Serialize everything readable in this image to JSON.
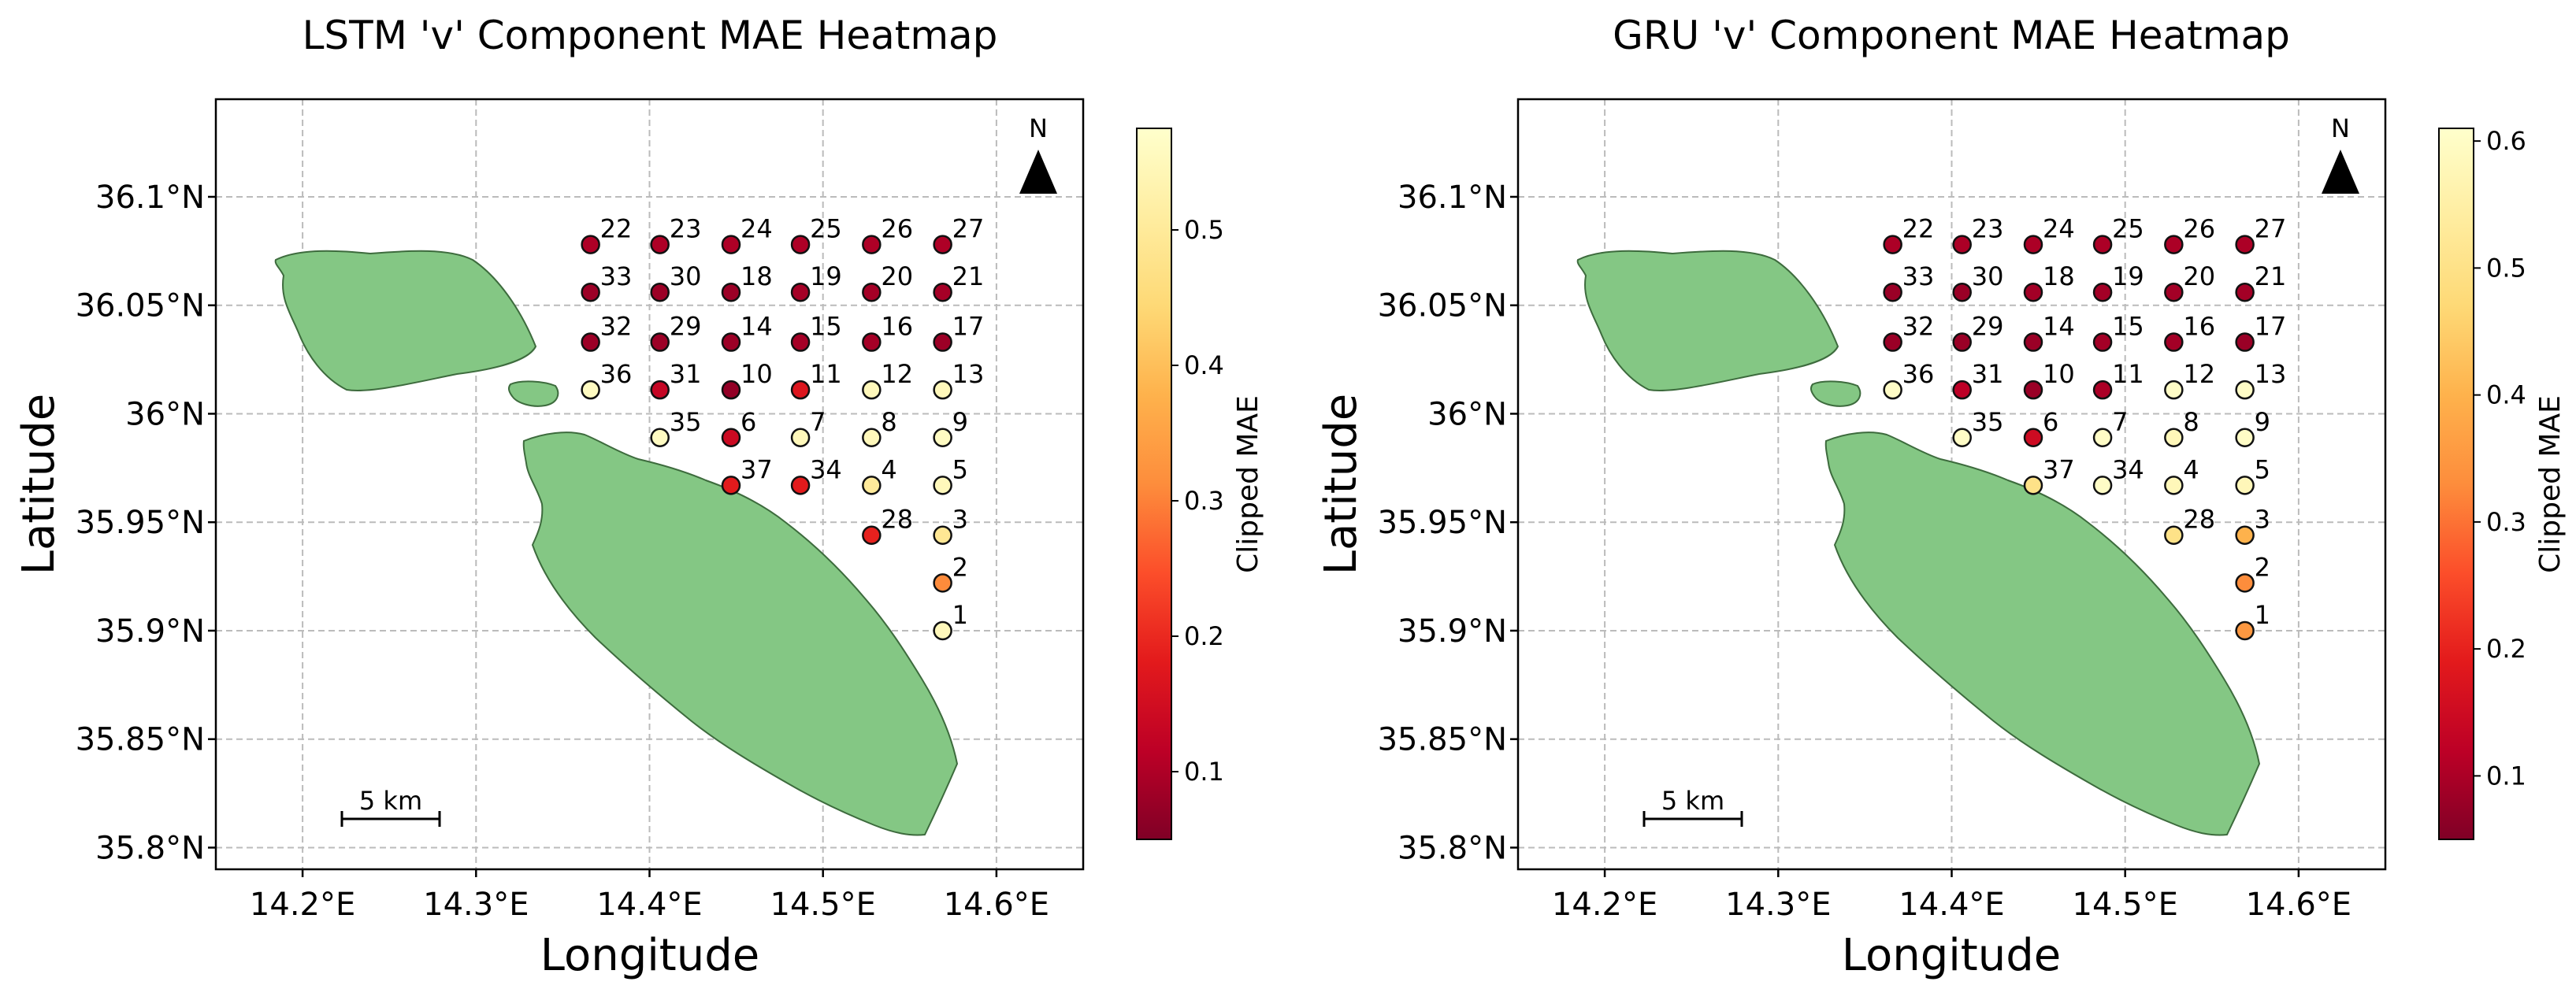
{
  "chart_data": [
    {
      "type": "scatter",
      "title": "LSTM 'v' Component MAE Heatmap",
      "xlabel": "Longitude",
      "ylabel": "Latitude",
      "xlim": [
        14.15,
        14.65
      ],
      "ylim": [
        35.79,
        36.145
      ],
      "x_ticks": [
        14.2,
        14.3,
        14.4,
        14.5,
        14.6
      ],
      "x_tick_labels": [
        "14.2°E",
        "14.3°E",
        "14.4°E",
        "14.5°E",
        "14.6°E"
      ],
      "y_ticks": [
        35.8,
        35.85,
        35.9,
        35.95,
        36.0,
        36.05,
        36.1
      ],
      "y_tick_labels": [
        "35.8°N",
        "35.85°N",
        "35.9°N",
        "35.95°N",
        "36°N",
        "36.05°N",
        "36.1°N"
      ],
      "grid": true,
      "colorbar": {
        "label": "Clipped MAE",
        "min": 0.05,
        "max": 0.575,
        "ticks": [
          0.1,
          0.2,
          0.3,
          0.4,
          0.5
        ],
        "tick_labels": [
          "0.1",
          "0.2",
          "0.3",
          "0.4",
          "0.5"
        ],
        "cmap": "YlOrRd_r"
      },
      "scale_bar": "5 km",
      "north_arrow": "N",
      "stations": [
        {
          "id": "1",
          "lon": 14.569,
          "lat": 35.9,
          "mae": 0.55
        },
        {
          "id": "2",
          "lon": 14.569,
          "lat": 35.922,
          "mae": 0.31
        },
        {
          "id": "3",
          "lon": 14.569,
          "lat": 35.944,
          "mae": 0.49
        },
        {
          "id": "4",
          "lon": 14.528,
          "lat": 35.967,
          "mae": 0.5
        },
        {
          "id": "5",
          "lon": 14.569,
          "lat": 35.967,
          "mae": 0.55
        },
        {
          "id": "6",
          "lon": 14.447,
          "lat": 35.989,
          "mae": 0.14
        },
        {
          "id": "7",
          "lon": 14.487,
          "lat": 35.989,
          "mae": 0.55
        },
        {
          "id": "8",
          "lon": 14.528,
          "lat": 35.989,
          "mae": 0.55
        },
        {
          "id": "9",
          "lon": 14.569,
          "lat": 35.989,
          "mae": 0.56
        },
        {
          "id": "10",
          "lon": 14.447,
          "lat": 36.011,
          "mae": 0.07
        },
        {
          "id": "11",
          "lon": 14.487,
          "lat": 36.011,
          "mae": 0.17
        },
        {
          "id": "12",
          "lon": 14.528,
          "lat": 36.011,
          "mae": 0.55
        },
        {
          "id": "13",
          "lon": 14.569,
          "lat": 36.011,
          "mae": 0.55
        },
        {
          "id": "14",
          "lon": 14.447,
          "lat": 36.033,
          "mae": 0.08
        },
        {
          "id": "15",
          "lon": 14.487,
          "lat": 36.033,
          "mae": 0.09
        },
        {
          "id": "16",
          "lon": 14.528,
          "lat": 36.033,
          "mae": 0.09
        },
        {
          "id": "17",
          "lon": 14.569,
          "lat": 36.033,
          "mae": 0.08
        },
        {
          "id": "18",
          "lon": 14.447,
          "lat": 36.056,
          "mae": 0.08
        },
        {
          "id": "19",
          "lon": 14.487,
          "lat": 36.056,
          "mae": 0.09
        },
        {
          "id": "20",
          "lon": 14.528,
          "lat": 36.056,
          "mae": 0.09
        },
        {
          "id": "21",
          "lon": 14.569,
          "lat": 36.056,
          "mae": 0.09
        },
        {
          "id": "22",
          "lon": 14.366,
          "lat": 36.078,
          "mae": 0.1
        },
        {
          "id": "23",
          "lon": 14.406,
          "lat": 36.078,
          "mae": 0.1
        },
        {
          "id": "24",
          "lon": 14.447,
          "lat": 36.078,
          "mae": 0.1
        },
        {
          "id": "25",
          "lon": 14.487,
          "lat": 36.078,
          "mae": 0.1
        },
        {
          "id": "26",
          "lon": 14.528,
          "lat": 36.078,
          "mae": 0.1
        },
        {
          "id": "27",
          "lon": 14.569,
          "lat": 36.078,
          "mae": 0.1
        },
        {
          "id": "28",
          "lon": 14.528,
          "lat": 35.944,
          "mae": 0.19
        },
        {
          "id": "29",
          "lon": 14.406,
          "lat": 36.033,
          "mae": 0.08
        },
        {
          "id": "30",
          "lon": 14.406,
          "lat": 36.056,
          "mae": 0.08
        },
        {
          "id": "31",
          "lon": 14.406,
          "lat": 36.011,
          "mae": 0.13
        },
        {
          "id": "32",
          "lon": 14.366,
          "lat": 36.033,
          "mae": 0.08
        },
        {
          "id": "33",
          "lon": 14.366,
          "lat": 36.056,
          "mae": 0.08
        },
        {
          "id": "34",
          "lon": 14.487,
          "lat": 35.967,
          "mae": 0.18
        },
        {
          "id": "35",
          "lon": 14.406,
          "lat": 35.989,
          "mae": 0.56
        },
        {
          "id": "36",
          "lon": 14.366,
          "lat": 36.011,
          "mae": 0.56
        },
        {
          "id": "37",
          "lon": 14.447,
          "lat": 35.967,
          "mae": 0.18
        }
      ]
    },
    {
      "type": "scatter",
      "title": "GRU 'v' Component MAE Heatmap",
      "xlabel": "Longitude",
      "ylabel": "Latitude",
      "xlim": [
        14.15,
        14.65
      ],
      "ylim": [
        35.79,
        36.145
      ],
      "x_ticks": [
        14.2,
        14.3,
        14.4,
        14.5,
        14.6
      ],
      "x_tick_labels": [
        "14.2°E",
        "14.3°E",
        "14.4°E",
        "14.5°E",
        "14.6°E"
      ],
      "y_ticks": [
        35.8,
        35.85,
        35.9,
        35.95,
        36.0,
        36.05,
        36.1
      ],
      "y_tick_labels": [
        "35.8°N",
        "35.85°N",
        "35.9°N",
        "35.95°N",
        "36°N",
        "36.05°N",
        "36.1°N"
      ],
      "grid": true,
      "colorbar": {
        "label": "Clipped MAE",
        "min": 0.05,
        "max": 0.61,
        "ticks": [
          0.1,
          0.2,
          0.3,
          0.4,
          0.5,
          0.6
        ],
        "tick_labels": [
          "0.1",
          "0.2",
          "0.3",
          "0.4",
          "0.5",
          "0.6"
        ],
        "cmap": "YlOrRd_r"
      },
      "scale_bar": "5 km",
      "north_arrow": "N",
      "stations": [
        {
          "id": "1",
          "lon": 14.569,
          "lat": 35.9,
          "mae": 0.35
        },
        {
          "id": "2",
          "lon": 14.569,
          "lat": 35.922,
          "mae": 0.33
        },
        {
          "id": "3",
          "lon": 14.569,
          "lat": 35.944,
          "mae": 0.4
        },
        {
          "id": "4",
          "lon": 14.528,
          "lat": 35.967,
          "mae": 0.58
        },
        {
          "id": "5",
          "lon": 14.569,
          "lat": 35.967,
          "mae": 0.58
        },
        {
          "id": "6",
          "lon": 14.447,
          "lat": 35.989,
          "mae": 0.15
        },
        {
          "id": "7",
          "lon": 14.487,
          "lat": 35.989,
          "mae": 0.6
        },
        {
          "id": "8",
          "lon": 14.528,
          "lat": 35.989,
          "mae": 0.58
        },
        {
          "id": "9",
          "lon": 14.569,
          "lat": 35.989,
          "mae": 0.6
        },
        {
          "id": "10",
          "lon": 14.447,
          "lat": 36.011,
          "mae": 0.08
        },
        {
          "id": "11",
          "lon": 14.487,
          "lat": 36.011,
          "mae": 0.1
        },
        {
          "id": "12",
          "lon": 14.528,
          "lat": 36.011,
          "mae": 0.6
        },
        {
          "id": "13",
          "lon": 14.569,
          "lat": 36.011,
          "mae": 0.6
        },
        {
          "id": "14",
          "lon": 14.447,
          "lat": 36.033,
          "mae": 0.08
        },
        {
          "id": "15",
          "lon": 14.487,
          "lat": 36.033,
          "mae": 0.09
        },
        {
          "id": "16",
          "lon": 14.528,
          "lat": 36.033,
          "mae": 0.09
        },
        {
          "id": "17",
          "lon": 14.569,
          "lat": 36.033,
          "mae": 0.08
        },
        {
          "id": "18",
          "lon": 14.447,
          "lat": 36.056,
          "mae": 0.09
        },
        {
          "id": "19",
          "lon": 14.487,
          "lat": 36.056,
          "mae": 0.09
        },
        {
          "id": "20",
          "lon": 14.528,
          "lat": 36.056,
          "mae": 0.09
        },
        {
          "id": "21",
          "lon": 14.569,
          "lat": 36.056,
          "mae": 0.09
        },
        {
          "id": "22",
          "lon": 14.366,
          "lat": 36.078,
          "mae": 0.1
        },
        {
          "id": "23",
          "lon": 14.406,
          "lat": 36.078,
          "mae": 0.1
        },
        {
          "id": "24",
          "lon": 14.447,
          "lat": 36.078,
          "mae": 0.1
        },
        {
          "id": "25",
          "lon": 14.487,
          "lat": 36.078,
          "mae": 0.1
        },
        {
          "id": "26",
          "lon": 14.528,
          "lat": 36.078,
          "mae": 0.1
        },
        {
          "id": "27",
          "lon": 14.569,
          "lat": 36.078,
          "mae": 0.1
        },
        {
          "id": "28",
          "lon": 14.528,
          "lat": 35.944,
          "mae": 0.5
        },
        {
          "id": "29",
          "lon": 14.406,
          "lat": 36.033,
          "mae": 0.08
        },
        {
          "id": "30",
          "lon": 14.406,
          "lat": 36.056,
          "mae": 0.08
        },
        {
          "id": "31",
          "lon": 14.406,
          "lat": 36.011,
          "mae": 0.12
        },
        {
          "id": "32",
          "lon": 14.366,
          "lat": 36.033,
          "mae": 0.08
        },
        {
          "id": "33",
          "lon": 14.366,
          "lat": 36.056,
          "mae": 0.08
        },
        {
          "id": "34",
          "lon": 14.487,
          "lat": 35.967,
          "mae": 0.6
        },
        {
          "id": "35",
          "lon": 14.406,
          "lat": 35.989,
          "mae": 0.6
        },
        {
          "id": "36",
          "lon": 14.366,
          "lat": 36.011,
          "mae": 0.6
        },
        {
          "id": "37",
          "lon": 14.447,
          "lat": 35.967,
          "mae": 0.5
        }
      ]
    }
  ]
}
